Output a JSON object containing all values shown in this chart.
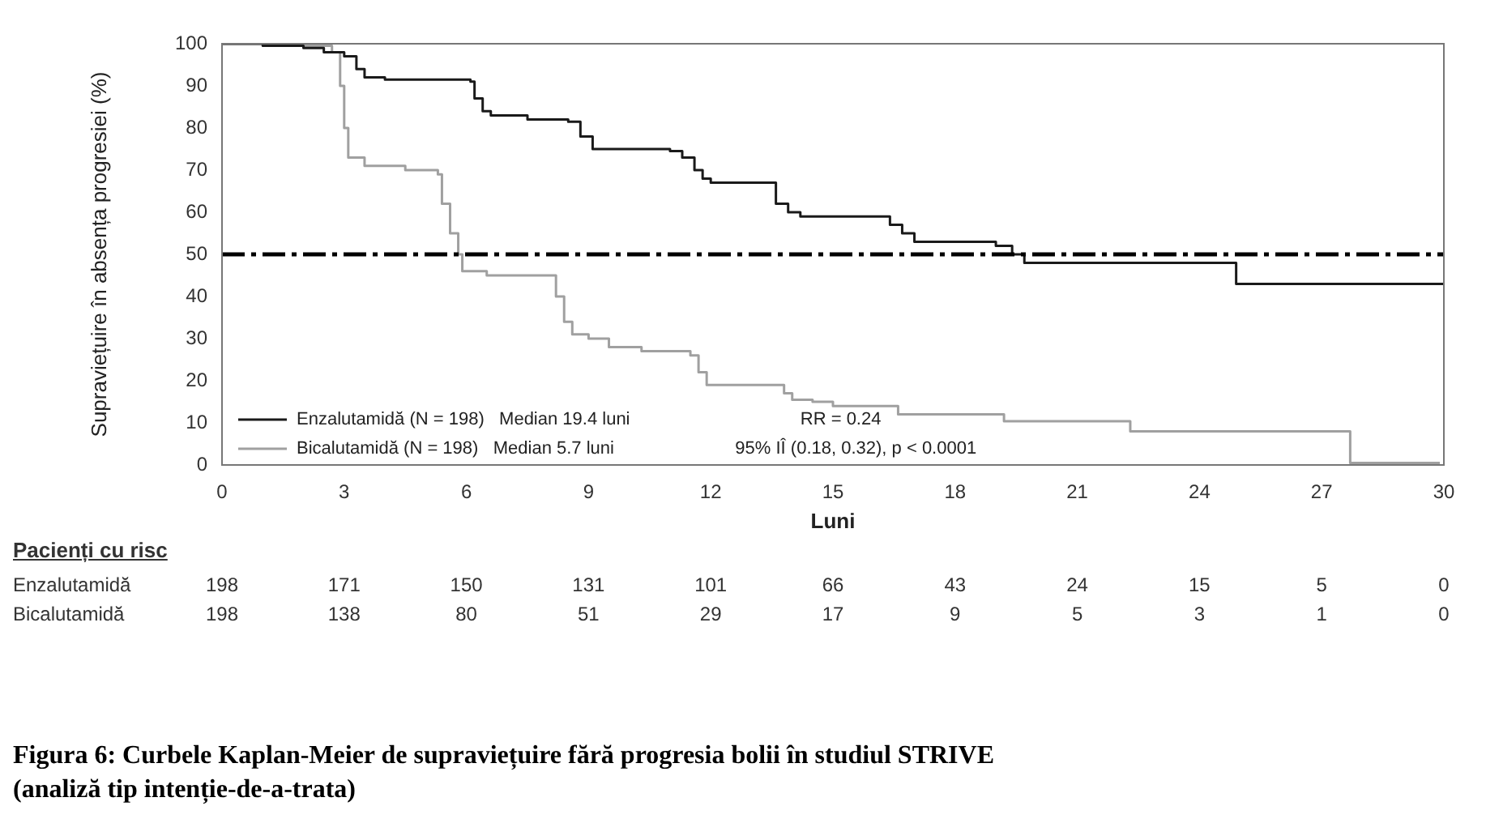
{
  "chart_data": {
    "type": "step",
    "title": "Figura 6: Curbele Kaplan-Meier de supraviețuire fără progresia bolii în studiul STRIVE (analiză tip intenție-de-a-trata)",
    "xlabel": "Luni",
    "ylabel": "Supraviețuire în absența progresiei (%)",
    "series": [
      {
        "name": "Enzalutamidă (N = 198)   Median 19.4 luni",
        "color": "#1a1a1a",
        "x": [
          0,
          1,
          2,
          2.5,
          3,
          3.3,
          3.5,
          4,
          6.1,
          6.2,
          6.4,
          6.6,
          7.5,
          8.5,
          8.8,
          9.1,
          11,
          11.3,
          11.6,
          11.8,
          12,
          13.6,
          13.9,
          14.2,
          16.4,
          16.7,
          17,
          19,
          19.4,
          19.7,
          24.9,
          30
        ],
        "values": [
          100,
          99.5,
          99,
          98,
          97,
          94,
          92,
          91.5,
          91,
          87,
          84,
          83,
          82,
          81.5,
          78,
          75,
          74.5,
          73,
          70,
          68,
          67,
          62,
          60,
          59,
          57,
          55,
          53,
          52,
          50,
          48,
          43,
          43
        ]
      },
      {
        "name": "Bicalutamidă (N = 198)   Median 5.7 luni",
        "color": "#a0a0a0",
        "x": [
          0,
          2,
          2.7,
          2.9,
          3,
          3.1,
          3.5,
          4.5,
          5.3,
          5.4,
          5.6,
          5.8,
          5.9,
          6.5,
          8,
          8.2,
          8.4,
          8.6,
          9,
          9.5,
          10.3,
          11.5,
          11.7,
          11.9,
          13.8,
          14,
          14.5,
          15,
          16.6,
          19.2,
          22.3,
          27.7,
          29.9
        ],
        "values": [
          100,
          99.5,
          98,
          90,
          80,
          73,
          71,
          70,
          69,
          62,
          55,
          50,
          46,
          45,
          45,
          40,
          34,
          31,
          30,
          28,
          27,
          26,
          22,
          19,
          17,
          15.5,
          15,
          14,
          12,
          10.4,
          8,
          0.5,
          0.5
        ]
      }
    ],
    "xlim": [
      0,
      30
    ],
    "xticks": [
      0,
      3,
      6,
      9,
      12,
      15,
      18,
      21,
      24,
      27,
      30
    ],
    "ylim": [
      0,
      100
    ],
    "yticks": [
      0,
      10,
      20,
      30,
      40,
      50,
      60,
      70,
      80,
      90,
      100
    ],
    "ref_lines": [
      {
        "axis": "y",
        "value": 50,
        "color": "#000000"
      }
    ],
    "annotations": [
      "RR = 0.24",
      "95% IÎ (0.18, 0.32), p < 0.0001",
      "Pacienți cu risc",
      "Enzalutamidă 198 171 150 131 101 66 43 24 15 5 0",
      "Bicalutamidă 198 138 80 51 29 17 9 5 3 1 0"
    ],
    "legend": "bottom left",
    "grid": false,
    "marker": "none"
  }
}
